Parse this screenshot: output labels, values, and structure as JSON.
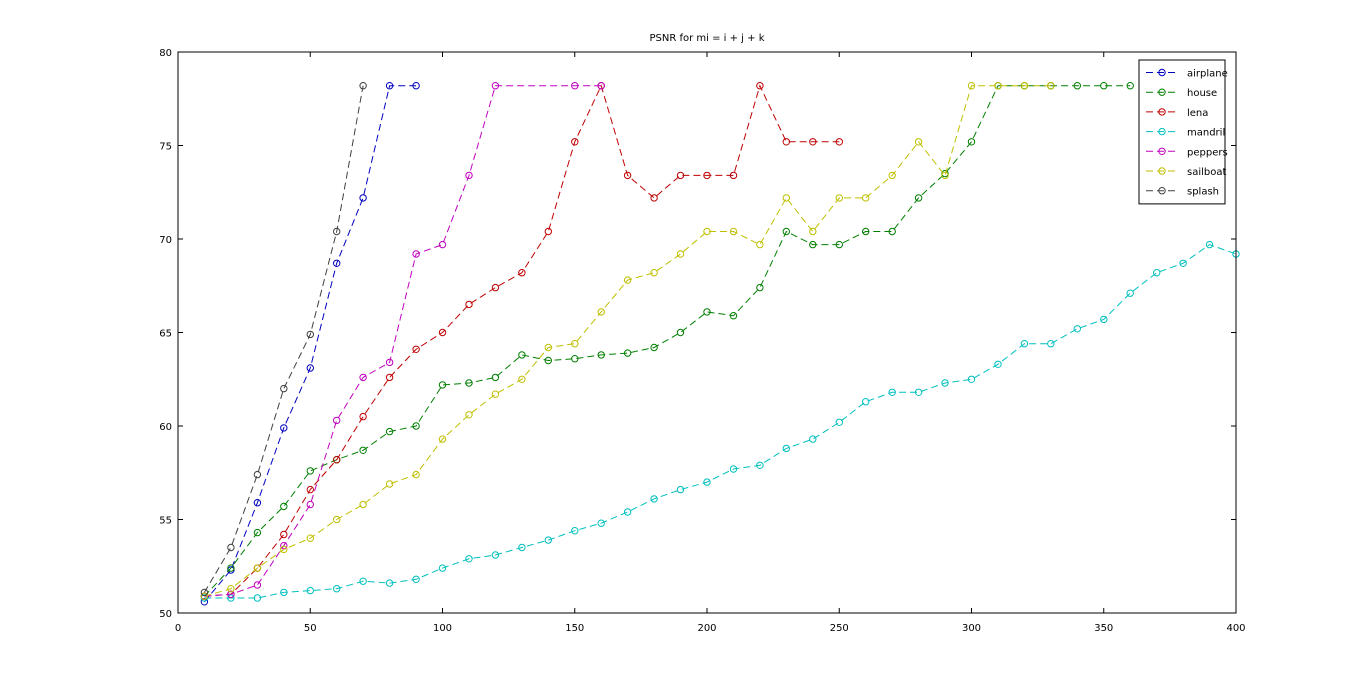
{
  "chart_data": {
    "type": "line",
    "title": "PSNR for mi = i + j + k",
    "xlabel": "",
    "ylabel": "",
    "xlim": [
      0,
      400
    ],
    "ylim": [
      50,
      80
    ],
    "xticks": [
      0,
      50,
      100,
      150,
      200,
      250,
      300,
      350,
      400
    ],
    "yticks": [
      50,
      55,
      60,
      65,
      70,
      75,
      80
    ],
    "grid": false,
    "legend_position": "top-right",
    "line_style": "dashed",
    "marker": "circle",
    "series": [
      {
        "name": "airplane",
        "color": "#0000bf",
        "x": [
          10,
          20,
          30,
          40,
          50,
          60,
          70,
          80,
          90
        ],
        "y": [
          50.6,
          52.3,
          55.9,
          59.9,
          63.1,
          68.7,
          72.2,
          78.2,
          78.2
        ]
      },
      {
        "name": "house",
        "color": "#007f00",
        "x": [
          10,
          20,
          30,
          40,
          50,
          60,
          70,
          80,
          90,
          100,
          110,
          120,
          130,
          140,
          150,
          160,
          170,
          180,
          190,
          200,
          210,
          220,
          230,
          240,
          250,
          260,
          270,
          280,
          290,
          300,
          310,
          320,
          330,
          340,
          350,
          360
        ],
        "y": [
          50.9,
          52.4,
          54.3,
          55.7,
          57.6,
          58.2,
          58.7,
          59.7,
          60.0,
          62.2,
          62.3,
          62.6,
          63.8,
          63.5,
          63.6,
          63.8,
          63.9,
          64.2,
          65.0,
          66.1,
          65.9,
          67.4,
          70.4,
          69.7,
          69.7,
          70.4,
          70.4,
          72.2,
          73.5,
          75.2,
          78.2,
          78.2,
          78.2,
          78.2,
          78.2,
          78.2
        ]
      },
      {
        "name": "lena",
        "color": "#bf0000",
        "x": [
          10,
          20,
          30,
          40,
          50,
          60,
          70,
          80,
          90,
          100,
          110,
          120,
          130,
          140,
          150,
          160,
          170,
          180,
          190,
          200,
          210,
          220,
          230,
          240,
          250
        ],
        "y": [
          50.9,
          51.0,
          52.4,
          54.2,
          56.6,
          58.2,
          60.5,
          62.6,
          64.1,
          65.0,
          66.5,
          67.4,
          68.2,
          70.4,
          75.2,
          78.2,
          73.4,
          72.2,
          73.4,
          73.4,
          73.4,
          78.2,
          75.2,
          75.2,
          75.2
        ]
      },
      {
        "name": "mandril",
        "color": "#00bfbf",
        "x": [
          10,
          20,
          30,
          40,
          50,
          60,
          70,
          80,
          90,
          100,
          110,
          120,
          130,
          140,
          150,
          160,
          170,
          180,
          190,
          200,
          210,
          220,
          230,
          240,
          250,
          260,
          270,
          280,
          290,
          300,
          310,
          320,
          330,
          340,
          350,
          360,
          370,
          380,
          390,
          400
        ],
        "y": [
          50.8,
          50.8,
          50.8,
          51.1,
          51.2,
          51.3,
          51.7,
          51.6,
          51.8,
          52.4,
          52.9,
          53.1,
          53.5,
          53.9,
          54.4,
          54.8,
          55.4,
          56.1,
          56.6,
          57.0,
          57.7,
          57.9,
          58.8,
          59.3,
          60.2,
          61.3,
          61.8,
          61.8,
          62.3,
          62.5,
          63.3,
          64.4,
          64.4,
          65.2,
          65.7,
          67.1,
          68.2,
          68.7,
          69.7,
          69.2
        ]
      },
      {
        "name": "peppers",
        "color": "#bf00bf",
        "x": [
          10,
          20,
          30,
          40,
          50,
          60,
          70,
          80,
          90,
          100,
          110,
          120,
          150,
          160
        ],
        "y": [
          50.9,
          51.0,
          51.5,
          53.6,
          55.8,
          60.3,
          62.6,
          63.4,
          69.2,
          69.7,
          73.4,
          78.2,
          78.2,
          78.2
        ]
      },
      {
        "name": "sailboat",
        "color": "#bfbf00",
        "x": [
          10,
          20,
          30,
          40,
          50,
          60,
          70,
          80,
          90,
          100,
          110,
          120,
          130,
          140,
          150,
          160,
          170,
          180,
          190,
          200,
          210,
          220,
          230,
          240,
          250,
          260,
          270,
          280,
          290,
          300,
          310,
          320,
          330
        ],
        "y": [
          50.9,
          51.3,
          52.4,
          53.4,
          54.0,
          55.0,
          55.8,
          56.9,
          57.4,
          59.3,
          60.6,
          61.7,
          62.5,
          64.2,
          64.4,
          66.1,
          67.8,
          68.2,
          69.2,
          70.4,
          70.4,
          69.7,
          72.2,
          70.4,
          72.2,
          72.2,
          73.4,
          75.2,
          73.4,
          78.2,
          78.2,
          78.2,
          78.2
        ]
      },
      {
        "name": "splash",
        "color": "#404040",
        "x": [
          10,
          20,
          30,
          40,
          50,
          60,
          70
        ],
        "y": [
          51.1,
          53.5,
          57.4,
          62.0,
          64.9,
          70.4,
          78.2
        ]
      }
    ]
  }
}
